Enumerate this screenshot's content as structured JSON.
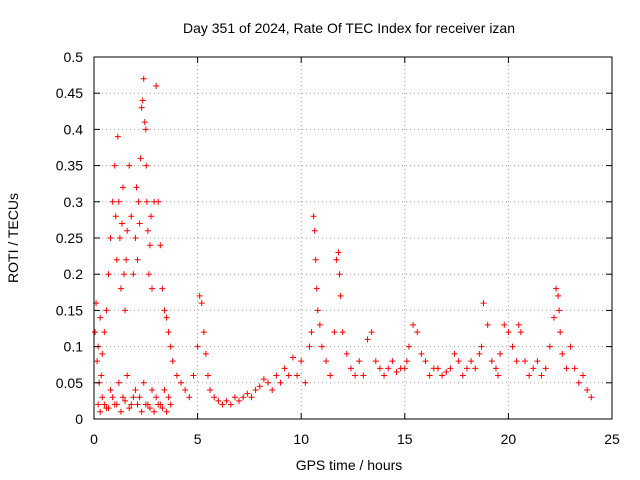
{
  "chart_data": {
    "type": "scatter",
    "title": "Day 351 of 2024, Rate Of TEC Index for receiver izan",
    "xlabel": "GPS time / hours",
    "ylabel": "ROTI / TECUs",
    "xlim": [
      0,
      25
    ],
    "ylim": [
      0,
      0.5
    ],
    "xticks": [
      0,
      5,
      10,
      15,
      20,
      25
    ],
    "yticks": [
      0,
      0.05,
      0.1,
      0.15,
      0.2,
      0.25,
      0.3,
      0.35,
      0.4,
      0.45,
      0.5
    ],
    "xtick_labels": [
      "0",
      "5",
      "10",
      "15",
      "20",
      "25"
    ],
    "ytick_labels": [
      "0",
      "0.05",
      "0.1",
      "0.15",
      "0.2",
      "0.25",
      "0.3",
      "0.35",
      "0.4",
      "0.45",
      "0.5"
    ],
    "grid": true,
    "marker": "+",
    "color": "#ff0000",
    "series": [
      {
        "x": [
          0.05,
          0.1,
          0.15,
          0.2,
          0.25,
          0.3,
          0.35,
          0.4,
          0.5,
          0.6,
          0.7,
          0.8,
          0.9,
          1.0,
          1.05,
          1.1,
          1.15,
          1.2,
          1.25,
          1.3,
          1.35,
          1.4,
          1.45,
          1.5,
          1.55,
          1.6,
          1.7,
          1.8,
          1.9,
          2.0,
          2.05,
          2.1,
          2.15,
          2.2,
          2.25,
          2.3,
          2.35,
          2.4,
          2.45,
          2.5,
          2.52,
          2.55,
          2.6,
          2.65,
          2.7,
          2.75,
          2.8,
          2.9,
          3.0,
          3.1,
          3.2,
          3.3,
          3.4,
          3.5,
          3.6,
          3.7,
          3.8,
          4.0,
          4.2,
          4.4,
          4.6,
          4.8,
          5.0,
          5.1,
          5.2,
          5.3,
          5.4,
          5.5,
          5.6,
          5.8,
          6.0,
          6.2,
          6.4,
          6.6,
          6.8,
          7.0,
          7.2,
          7.4,
          7.6,
          7.8,
          8.0,
          8.2,
          8.4,
          8.6,
          8.8,
          9.0,
          9.2,
          9.4,
          9.6,
          9.8,
          10.0,
          10.2,
          10.4,
          10.5,
          10.6,
          10.65,
          10.7,
          10.75,
          10.8,
          10.9,
          11.0,
          11.2,
          11.4,
          11.6,
          11.7,
          11.8,
          11.85,
          11.9,
          12.0,
          12.2,
          12.4,
          12.6,
          12.8,
          13.0,
          13.2,
          13.4,
          13.6,
          13.8,
          14.0,
          14.2,
          14.4,
          14.6,
          14.8,
          15.0,
          15.1,
          15.2,
          15.4,
          15.6,
          15.8,
          16.0,
          16.2,
          16.4,
          16.6,
          16.8,
          17.0,
          17.2,
          17.4,
          17.6,
          17.8,
          18.0,
          18.2,
          18.4,
          18.6,
          18.7,
          18.8,
          19.0,
          19.2,
          19.4,
          19.5,
          19.6,
          19.8,
          20.0,
          20.2,
          20.4,
          20.5,
          20.6,
          20.8,
          21.0,
          21.2,
          21.4,
          21.6,
          21.8,
          22.0,
          22.2,
          22.3,
          22.4,
          22.45,
          22.5,
          22.6,
          22.8,
          23.0,
          23.2,
          23.4,
          23.6,
          23.8,
          24.0,
          0.2,
          0.4,
          0.6,
          0.8,
          1.0,
          1.2,
          1.4,
          1.6,
          1.8,
          2.0,
          2.2,
          2.4,
          2.6,
          2.8,
          3.0,
          3.2,
          3.4,
          3.6,
          0.3,
          0.5,
          0.7,
          0.9,
          1.1,
          1.3,
          1.5,
          1.7,
          1.9,
          2.1,
          2.3,
          2.5,
          2.7,
          2.9,
          3.1,
          3.3,
          3.5,
          3.7
        ],
        "y": [
          0.12,
          0.16,
          0.08,
          0.1,
          0.05,
          0.14,
          0.06,
          0.09,
          0.12,
          0.15,
          0.2,
          0.25,
          0.3,
          0.35,
          0.28,
          0.22,
          0.39,
          0.3,
          0.25,
          0.18,
          0.27,
          0.32,
          0.2,
          0.15,
          0.22,
          0.26,
          0.35,
          0.28,
          0.2,
          0.25,
          0.32,
          0.22,
          0.3,
          0.27,
          0.36,
          0.43,
          0.44,
          0.47,
          0.41,
          0.4,
          0.35,
          0.3,
          0.26,
          0.2,
          0.24,
          0.28,
          0.18,
          0.3,
          0.46,
          0.3,
          0.24,
          0.18,
          0.15,
          0.14,
          0.12,
          0.1,
          0.08,
          0.06,
          0.05,
          0.04,
          0.03,
          0.06,
          0.1,
          0.17,
          0.16,
          0.12,
          0.09,
          0.06,
          0.04,
          0.03,
          0.025,
          0.02,
          0.025,
          0.02,
          0.03,
          0.025,
          0.03,
          0.035,
          0.03,
          0.04,
          0.045,
          0.055,
          0.05,
          0.04,
          0.06,
          0.05,
          0.07,
          0.06,
          0.085,
          0.06,
          0.08,
          0.05,
          0.1,
          0.12,
          0.28,
          0.26,
          0.22,
          0.18,
          0.15,
          0.13,
          0.1,
          0.08,
          0.06,
          0.12,
          0.22,
          0.23,
          0.2,
          0.17,
          0.12,
          0.09,
          0.07,
          0.06,
          0.08,
          0.06,
          0.11,
          0.12,
          0.08,
          0.07,
          0.06,
          0.07,
          0.08,
          0.065,
          0.07,
          0.07,
          0.08,
          0.1,
          0.13,
          0.12,
          0.09,
          0.08,
          0.06,
          0.07,
          0.07,
          0.06,
          0.065,
          0.07,
          0.09,
          0.08,
          0.06,
          0.07,
          0.08,
          0.07,
          0.09,
          0.1,
          0.16,
          0.13,
          0.08,
          0.07,
          0.06,
          0.09,
          0.13,
          0.12,
          0.1,
          0.08,
          0.13,
          0.12,
          0.08,
          0.06,
          0.07,
          0.08,
          0.06,
          0.07,
          0.1,
          0.14,
          0.18,
          0.17,
          0.15,
          0.12,
          0.09,
          0.07,
          0.1,
          0.07,
          0.05,
          0.06,
          0.04,
          0.03,
          0.02,
          0.03,
          0.015,
          0.04,
          0.02,
          0.05,
          0.03,
          0.06,
          0.02,
          0.04,
          0.03,
          0.05,
          0.02,
          0.04,
          0.03,
          0.02,
          0.04,
          0.03,
          0.01,
          0.02,
          0.015,
          0.03,
          0.02,
          0.01,
          0.025,
          0.015,
          0.03,
          0.02,
          0.01,
          0.02,
          0.015,
          0.01,
          0.02,
          0.015,
          0.01,
          0.02
        ]
      }
    ]
  }
}
